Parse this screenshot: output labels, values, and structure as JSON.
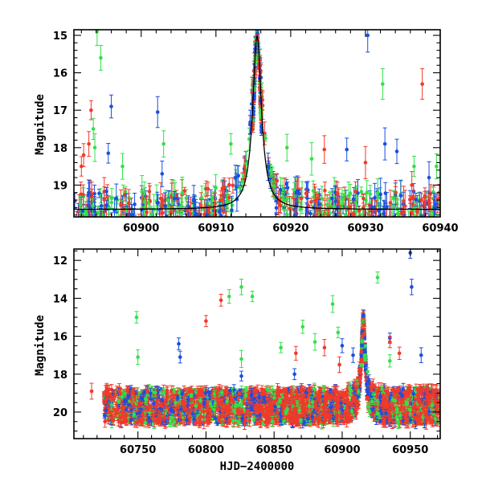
{
  "colors": {
    "blue": "#1a4fe0",
    "green": "#33e04a",
    "red": "#f03a2a",
    "axis": "#000000",
    "model": "#000000"
  },
  "chart_data": [
    {
      "type": "scatter",
      "panel": "top",
      "xlim": [
        60891,
        60940
      ],
      "ylim": [
        19.85,
        14.85
      ],
      "ylabel": "Magnitude",
      "xlabel": "",
      "major_xticks": [
        60900,
        60910,
        60920,
        60930,
        60940
      ],
      "major_xtick_labels": [
        "60900",
        "60910",
        "60920",
        "60930",
        "60940"
      ],
      "major_yticks": [
        15,
        16,
        17,
        18,
        19
      ],
      "major_ytick_labels": [
        "15",
        "16",
        "17",
        "18",
        "19"
      ],
      "baseline": 19.65,
      "peak": {
        "x": 60915.5,
        "y": 15.0
      },
      "baseline_scatter": [
        18.9,
        19.85
      ],
      "series": [
        {
          "name": "blue",
          "color_key": "blue",
          "outliers": [
            {
              "x": 60896.0,
              "y": 16.9
            },
            {
              "x": 60895.6,
              "y": 18.15
            },
            {
              "x": 60902.2,
              "y": 17.05
            },
            {
              "x": 60902.8,
              "y": 18.7
            },
            {
              "x": 60913.0,
              "y": 18.75
            },
            {
              "x": 60927.5,
              "y": 18.05
            },
            {
              "x": 60930.3,
              "y": 15.0
            },
            {
              "x": 60932.6,
              "y": 17.9
            },
            {
              "x": 60934.2,
              "y": 18.1
            },
            {
              "x": 60938.5,
              "y": 18.8
            },
            {
              "x": 60939.2,
              "y": 19.6
            }
          ]
        },
        {
          "name": "green",
          "color_key": "green",
          "outliers": [
            {
              "x": 60894.1,
              "y": 14.9
            },
            {
              "x": 60894.6,
              "y": 15.6
            },
            {
              "x": 60893.6,
              "y": 17.5
            },
            {
              "x": 60893.8,
              "y": 18.0
            },
            {
              "x": 60897.5,
              "y": 18.5
            },
            {
              "x": 60903.0,
              "y": 17.9
            },
            {
              "x": 60912.0,
              "y": 17.9
            },
            {
              "x": 60919.5,
              "y": 18.0
            },
            {
              "x": 60922.8,
              "y": 18.3
            },
            {
              "x": 60932.3,
              "y": 16.3
            },
            {
              "x": 60936.5,
              "y": 18.5
            },
            {
              "x": 60939.5,
              "y": 18.5
            }
          ]
        },
        {
          "name": "red",
          "color_key": "red",
          "outliers": [
            {
              "x": 60893.3,
              "y": 17.0
            },
            {
              "x": 60893.0,
              "y": 17.9
            },
            {
              "x": 60892.3,
              "y": 18.2
            },
            {
              "x": 60892.0,
              "y": 18.5
            },
            {
              "x": 60924.5,
              "y": 18.05
            },
            {
              "x": 60937.6,
              "y": 16.3
            },
            {
              "x": 60930.0,
              "y": 18.4
            },
            {
              "x": 60936.2,
              "y": 19.0
            }
          ]
        }
      ]
    },
    {
      "type": "scatter",
      "panel": "bottom",
      "xlim": [
        60703,
        60972
      ],
      "ylim": [
        21.4,
        11.4
      ],
      "ylabel": "Magnitude",
      "xlabel": "HJD−2400000",
      "major_xticks": [
        60750,
        60800,
        60850,
        60900,
        60950
      ],
      "major_xtick_labels": [
        "60750",
        "60800",
        "60850",
        "60900",
        "60950"
      ],
      "major_yticks": [
        12,
        14,
        16,
        18,
        20
      ],
      "major_ytick_labels": [
        "12",
        "14",
        "16",
        "18",
        "20"
      ],
      "baseline": 19.7,
      "peak": {
        "x": 60915.5,
        "y": 15.0
      },
      "baseline_scatter": [
        18.8,
        20.6
      ],
      "series": [
        {
          "name": "blue",
          "color_key": "blue",
          "outliers": [
            {
              "x": 60780.0,
              "y": 16.4
            },
            {
              "x": 60781.0,
              "y": 17.1
            },
            {
              "x": 60826.0,
              "y": 18.1
            },
            {
              "x": 60865.0,
              "y": 18.0
            },
            {
              "x": 60900.0,
              "y": 16.5
            },
            {
              "x": 60908.0,
              "y": 17.0
            },
            {
              "x": 60935.0,
              "y": 16.1
            },
            {
              "x": 60950.0,
              "y": 11.6
            },
            {
              "x": 60951.0,
              "y": 13.4
            },
            {
              "x": 60958.0,
              "y": 17.0
            }
          ]
        },
        {
          "name": "green",
          "color_key": "green",
          "outliers": [
            {
              "x": 60749.0,
              "y": 15.0
            },
            {
              "x": 60750.0,
              "y": 17.1
            },
            {
              "x": 60817.0,
              "y": 13.9
            },
            {
              "x": 60826.0,
              "y": 13.4
            },
            {
              "x": 60834.0,
              "y": 13.9
            },
            {
              "x": 60826.0,
              "y": 17.2
            },
            {
              "x": 60855.0,
              "y": 16.6
            },
            {
              "x": 60871.0,
              "y": 15.5
            },
            {
              "x": 60880.0,
              "y": 16.3
            },
            {
              "x": 60893.0,
              "y": 14.3
            },
            {
              "x": 60897.0,
              "y": 15.8
            },
            {
              "x": 60926.0,
              "y": 12.9
            },
            {
              "x": 60935.0,
              "y": 17.3
            }
          ]
        },
        {
          "name": "red",
          "color_key": "red",
          "outliers": [
            {
              "x": 60811.0,
              "y": 14.1
            },
            {
              "x": 60800.0,
              "y": 15.2
            },
            {
              "x": 60866.0,
              "y": 16.9
            },
            {
              "x": 60887.0,
              "y": 16.6
            },
            {
              "x": 60898.0,
              "y": 17.5
            },
            {
              "x": 60935.0,
              "y": 16.3
            },
            {
              "x": 60942.0,
              "y": 16.9
            },
            {
              "x": 60716.0,
              "y": 18.9
            }
          ]
        }
      ]
    }
  ]
}
